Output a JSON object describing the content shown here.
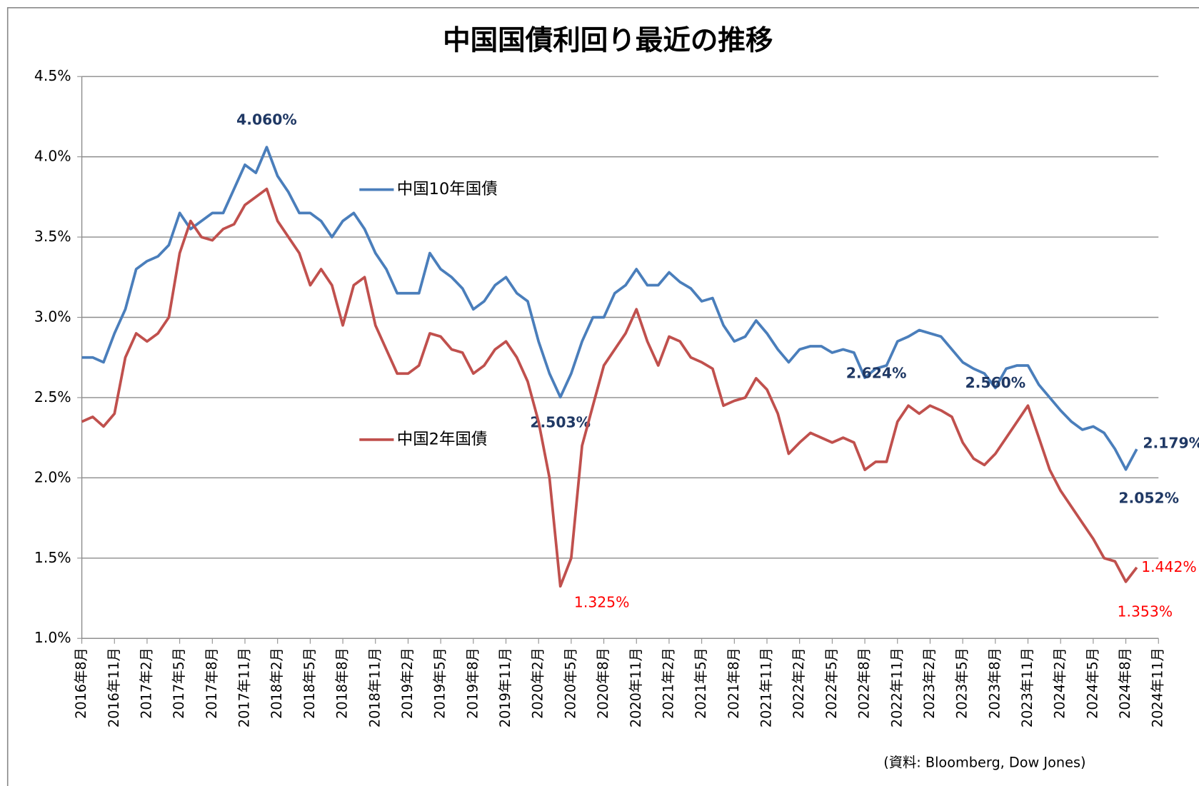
{
  "chart_data": {
    "type": "line",
    "title": "中国国債利回り最近の推移",
    "source": "(資料: Bloomberg, Dow Jones)",
    "xlim": [
      "2016-08",
      "2024-11"
    ],
    "xticks": [
      {
        "value": "2016-08",
        "label": "2016年8月"
      },
      {
        "value": "2016-11",
        "label": "2016年11月"
      },
      {
        "value": "2017-02",
        "label": "2017年2月"
      },
      {
        "value": "2017-05",
        "label": "2017年5月"
      },
      {
        "value": "2017-08",
        "label": "2017年8月"
      },
      {
        "value": "2017-11",
        "label": "2017年11月"
      },
      {
        "value": "2018-02",
        "label": "2018年2月"
      },
      {
        "value": "2018-05",
        "label": "2018年5月"
      },
      {
        "value": "2018-08",
        "label": "2018年8月"
      },
      {
        "value": "2018-11",
        "label": "2018年11月"
      },
      {
        "value": "2019-02",
        "label": "2019年2月"
      },
      {
        "value": "2019-05",
        "label": "2019年5月"
      },
      {
        "value": "2019-08",
        "label": "2019年8月"
      },
      {
        "value": "2019-11",
        "label": "2019年11月"
      },
      {
        "value": "2020-02",
        "label": "2020年2月"
      },
      {
        "value": "2020-05",
        "label": "2020年5月"
      },
      {
        "value": "2020-08",
        "label": "2020年8月"
      },
      {
        "value": "2020-11",
        "label": "2020年11月"
      },
      {
        "value": "2021-02",
        "label": "2021年2月"
      },
      {
        "value": "2021-05",
        "label": "2021年5月"
      },
      {
        "value": "2021-08",
        "label": "2021年8月"
      },
      {
        "value": "2021-11",
        "label": "2021年11月"
      },
      {
        "value": "2022-02",
        "label": "2022年2月"
      },
      {
        "value": "2022-05",
        "label": "2022年5月"
      },
      {
        "value": "2022-08",
        "label": "2022年8月"
      },
      {
        "value": "2022-11",
        "label": "2022年11月"
      },
      {
        "value": "2023-02",
        "label": "2023年2月"
      },
      {
        "value": "2023-05",
        "label": "2023年5月"
      },
      {
        "value": "2023-08",
        "label": "2023年8月"
      },
      {
        "value": "2023-11",
        "label": "2023年11月"
      },
      {
        "value": "2024-02",
        "label": "2024年2月"
      },
      {
        "value": "2024-05",
        "label": "2024年5月"
      },
      {
        "value": "2024-08",
        "label": "2024年8月"
      },
      {
        "value": "2024-11",
        "label": "2024年11月"
      }
    ],
    "ylim": [
      1.0,
      4.5
    ],
    "yticks": [
      {
        "value": 1.0,
        "label": "1.0%"
      },
      {
        "value": 1.5,
        "label": "1.5%"
      },
      {
        "value": 2.0,
        "label": "2.0%"
      },
      {
        "value": 2.5,
        "label": "2.5%"
      },
      {
        "value": 3.0,
        "label": "3.0%"
      },
      {
        "value": 3.5,
        "label": "3.5%"
      },
      {
        "value": 4.0,
        "label": "4.0%"
      },
      {
        "value": 4.5,
        "label": "4.5%"
      }
    ],
    "grid": true,
    "x": [
      "2016-08",
      "2016-09",
      "2016-10",
      "2016-11",
      "2016-12",
      "2017-01",
      "2017-02",
      "2017-03",
      "2017-04",
      "2017-05",
      "2017-06",
      "2017-07",
      "2017-08",
      "2017-09",
      "2017-10",
      "2017-11",
      "2017-12",
      "2018-01",
      "2018-02",
      "2018-03",
      "2018-04",
      "2018-05",
      "2018-06",
      "2018-07",
      "2018-08",
      "2018-09",
      "2018-10",
      "2018-11",
      "2018-12",
      "2019-01",
      "2019-02",
      "2019-03",
      "2019-04",
      "2019-05",
      "2019-06",
      "2019-07",
      "2019-08",
      "2019-09",
      "2019-10",
      "2019-11",
      "2019-12",
      "2020-01",
      "2020-02",
      "2020-03",
      "2020-04",
      "2020-05",
      "2020-06",
      "2020-07",
      "2020-08",
      "2020-09",
      "2020-10",
      "2020-11",
      "2020-12",
      "2021-01",
      "2021-02",
      "2021-03",
      "2021-04",
      "2021-05",
      "2021-06",
      "2021-07",
      "2021-08",
      "2021-09",
      "2021-10",
      "2021-11",
      "2021-12",
      "2022-01",
      "2022-02",
      "2022-03",
      "2022-04",
      "2022-05",
      "2022-06",
      "2022-07",
      "2022-08",
      "2022-09",
      "2022-10",
      "2022-11",
      "2022-12",
      "2023-01",
      "2023-02",
      "2023-03",
      "2023-04",
      "2023-05",
      "2023-06",
      "2023-07",
      "2023-08",
      "2023-09",
      "2023-10",
      "2023-11",
      "2023-12",
      "2024-01",
      "2024-02",
      "2024-03",
      "2024-04",
      "2024-05",
      "2024-06",
      "2024-07",
      "2024-08",
      "2024-09"
    ],
    "series": [
      {
        "name": "中国10年国債",
        "color": "#4a7ebb",
        "label_color": "#1f3864",
        "values": [
          2.75,
          2.75,
          2.72,
          2.9,
          3.05,
          3.3,
          3.35,
          3.38,
          3.45,
          3.65,
          3.55,
          3.6,
          3.65,
          3.65,
          3.8,
          3.95,
          3.9,
          4.06,
          3.88,
          3.78,
          3.65,
          3.65,
          3.6,
          3.5,
          3.6,
          3.65,
          3.55,
          3.4,
          3.3,
          3.15,
          3.15,
          3.15,
          3.4,
          3.3,
          3.25,
          3.18,
          3.05,
          3.1,
          3.2,
          3.25,
          3.15,
          3.1,
          2.85,
          2.65,
          2.503,
          2.65,
          2.85,
          3.0,
          3.0,
          3.15,
          3.2,
          3.3,
          3.2,
          3.2,
          3.28,
          3.22,
          3.18,
          3.1,
          3.12,
          2.95,
          2.85,
          2.88,
          2.98,
          2.9,
          2.8,
          2.72,
          2.8,
          2.82,
          2.82,
          2.78,
          2.8,
          2.78,
          2.624,
          2.68,
          2.7,
          2.85,
          2.88,
          2.92,
          2.9,
          2.88,
          2.8,
          2.72,
          2.68,
          2.65,
          2.56,
          2.68,
          2.7,
          2.7,
          2.58,
          2.5,
          2.42,
          2.35,
          2.3,
          2.32,
          2.28,
          2.18,
          2.052,
          2.179
        ],
        "value_labels": [
          null,
          null,
          null,
          null,
          null,
          null,
          null,
          null,
          null,
          null,
          null,
          null,
          null,
          null,
          null,
          null,
          null,
          "4.060%",
          null,
          null,
          null,
          null,
          null,
          null,
          null,
          null,
          null,
          null,
          null,
          null,
          null,
          null,
          null,
          null,
          null,
          null,
          null,
          null,
          null,
          null,
          null,
          null,
          null,
          null,
          "2.503%",
          null,
          null,
          null,
          null,
          null,
          null,
          null,
          null,
          null,
          null,
          null,
          null,
          null,
          null,
          null,
          null,
          null,
          null,
          null,
          null,
          null,
          null,
          null,
          null,
          null,
          null,
          null,
          "2.624%",
          null,
          null,
          null,
          null,
          null,
          null,
          null,
          null,
          null,
          null,
          null,
          "2.560%",
          null,
          null,
          null,
          null,
          null,
          null,
          null,
          null,
          null,
          null,
          null,
          "2.052%",
          "2.179%"
        ]
      },
      {
        "name": "中国2年国債",
        "color": "#c0504d",
        "label_color": "#ff0000",
        "values": [
          2.35,
          2.38,
          2.32,
          2.4,
          2.75,
          2.9,
          2.85,
          2.9,
          3.0,
          3.4,
          3.6,
          3.5,
          3.48,
          3.55,
          3.58,
          3.7,
          3.75,
          3.8,
          3.6,
          3.5,
          3.4,
          3.2,
          3.3,
          3.2,
          2.95,
          3.2,
          3.25,
          2.95,
          2.8,
          2.65,
          2.65,
          2.7,
          2.9,
          2.88,
          2.8,
          2.78,
          2.65,
          2.7,
          2.8,
          2.85,
          2.75,
          2.6,
          2.35,
          2.0,
          1.325,
          1.5,
          2.2,
          2.45,
          2.7,
          2.8,
          2.9,
          3.05,
          2.85,
          2.7,
          2.88,
          2.85,
          2.75,
          2.72,
          2.68,
          2.45,
          2.48,
          2.5,
          2.62,
          2.55,
          2.4,
          2.15,
          2.22,
          2.28,
          2.25,
          2.22,
          2.25,
          2.22,
          2.05,
          2.1,
          2.1,
          2.35,
          2.45,
          2.4,
          2.45,
          2.42,
          2.38,
          2.22,
          2.12,
          2.08,
          2.15,
          2.25,
          2.35,
          2.45,
          2.25,
          2.05,
          1.92,
          1.82,
          1.72,
          1.62,
          1.5,
          1.48,
          1.353,
          1.442
        ],
        "value_labels": [
          null,
          null,
          null,
          null,
          null,
          null,
          null,
          null,
          null,
          null,
          null,
          null,
          null,
          null,
          null,
          null,
          null,
          null,
          null,
          null,
          null,
          null,
          null,
          null,
          null,
          null,
          null,
          null,
          null,
          null,
          null,
          null,
          null,
          null,
          null,
          null,
          null,
          null,
          null,
          null,
          null,
          null,
          null,
          null,
          "1.325%",
          null,
          null,
          null,
          null,
          null,
          null,
          null,
          null,
          null,
          null,
          null,
          null,
          null,
          null,
          null,
          null,
          null,
          null,
          null,
          null,
          null,
          null,
          null,
          null,
          null,
          null,
          null,
          null,
          null,
          null,
          null,
          null,
          null,
          null,
          null,
          null,
          null,
          null,
          null,
          null,
          null,
          null,
          null,
          null,
          null,
          null,
          null,
          null,
          null,
          null,
          null,
          "1.353%",
          "1.442%"
        ]
      }
    ]
  }
}
